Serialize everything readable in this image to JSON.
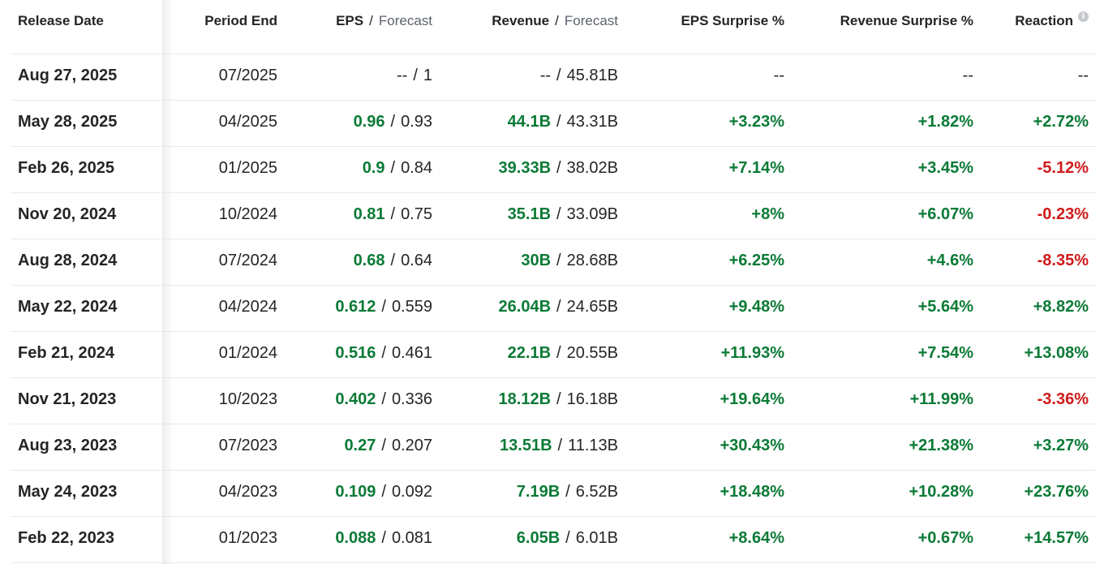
{
  "headers": {
    "release_date": "Release Date",
    "period_end": "Period End",
    "eps": "EPS",
    "eps_forecast": "Forecast",
    "revenue": "Revenue",
    "revenue_forecast": "Forecast",
    "eps_surprise": "EPS Surprise %",
    "revenue_surprise": "Revenue Surprise %",
    "reaction": "Reaction",
    "reaction_info_icon": "info-icon"
  },
  "separator": "/",
  "colors": {
    "positive": "#0b7a36",
    "negative": "#d11a1a",
    "text": "#232526"
  },
  "rows": [
    {
      "date": "Aug 27, 2025",
      "period": "07/2025",
      "eps": "--",
      "eps_fc": "1",
      "rev": "--",
      "rev_fc": "45.81B",
      "eps_s": "--",
      "rev_s": "--",
      "react": "--"
    },
    {
      "date": "May 28, 2025",
      "period": "04/2025",
      "eps": "0.96",
      "eps_fc": "0.93",
      "rev": "44.1B",
      "rev_fc": "43.31B",
      "eps_s": "+3.23%",
      "rev_s": "+1.82%",
      "react": "+2.72%"
    },
    {
      "date": "Feb 26, 2025",
      "period": "01/2025",
      "eps": "0.9",
      "eps_fc": "0.84",
      "rev": "39.33B",
      "rev_fc": "38.02B",
      "eps_s": "+7.14%",
      "rev_s": "+3.45%",
      "react": "-5.12%"
    },
    {
      "date": "Nov 20, 2024",
      "period": "10/2024",
      "eps": "0.81",
      "eps_fc": "0.75",
      "rev": "35.1B",
      "rev_fc": "33.09B",
      "eps_s": "+8%",
      "rev_s": "+6.07%",
      "react": "-0.23%"
    },
    {
      "date": "Aug 28, 2024",
      "period": "07/2024",
      "eps": "0.68",
      "eps_fc": "0.64",
      "rev": "30B",
      "rev_fc": "28.68B",
      "eps_s": "+6.25%",
      "rev_s": "+4.6%",
      "react": "-8.35%"
    },
    {
      "date": "May 22, 2024",
      "period": "04/2024",
      "eps": "0.612",
      "eps_fc": "0.559",
      "rev": "26.04B",
      "rev_fc": "24.65B",
      "eps_s": "+9.48%",
      "rev_s": "+5.64%",
      "react": "+8.82%"
    },
    {
      "date": "Feb 21, 2024",
      "period": "01/2024",
      "eps": "0.516",
      "eps_fc": "0.461",
      "rev": "22.1B",
      "rev_fc": "20.55B",
      "eps_s": "+11.93%",
      "rev_s": "+7.54%",
      "react": "+13.08%"
    },
    {
      "date": "Nov 21, 2023",
      "period": "10/2023",
      "eps": "0.402",
      "eps_fc": "0.336",
      "rev": "18.12B",
      "rev_fc": "16.18B",
      "eps_s": "+19.64%",
      "rev_s": "+11.99%",
      "react": "-3.36%"
    },
    {
      "date": "Aug 23, 2023",
      "period": "07/2023",
      "eps": "0.27",
      "eps_fc": "0.207",
      "rev": "13.51B",
      "rev_fc": "11.13B",
      "eps_s": "+30.43%",
      "rev_s": "+21.38%",
      "react": "+3.27%"
    },
    {
      "date": "May 24, 2023",
      "period": "04/2023",
      "eps": "0.109",
      "eps_fc": "0.092",
      "rev": "7.19B",
      "rev_fc": "6.52B",
      "eps_s": "+18.48%",
      "rev_s": "+10.28%",
      "react": "+23.76%"
    },
    {
      "date": "Feb 22, 2023",
      "period": "01/2023",
      "eps": "0.088",
      "eps_fc": "0.081",
      "rev": "6.05B",
      "rev_fc": "6.01B",
      "eps_s": "+8.64%",
      "rev_s": "+0.67%",
      "react": "+14.57%"
    }
  ]
}
